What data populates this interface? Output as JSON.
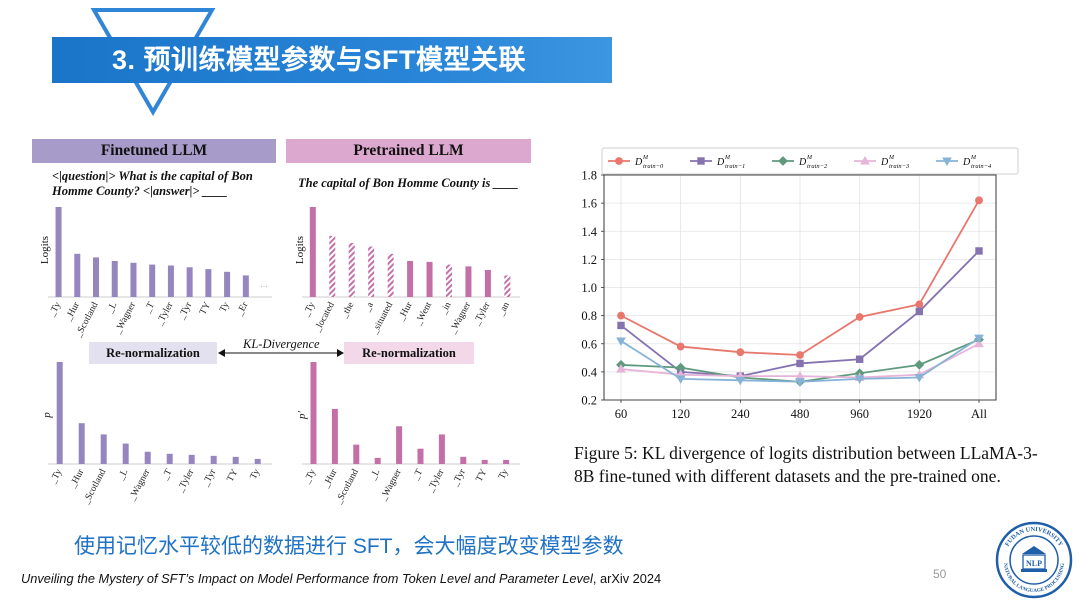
{
  "slide": {
    "title": "3. 预训练模型参数与SFT模型关联",
    "summary": "使用记忆水平较低的数据进行 SFT，会大幅度改变模型参数",
    "citation_title": "Unveiling the Mystery of SFT’s Impact on Model Performance from Token Level and Parameter Level",
    "citation_venue": ", arXiv 2024",
    "page_number": "50",
    "logo_text_top": "FUDAN UNIVERSITY",
    "logo_text_bottom": "NATURAL LANGUAGE PROCESSING",
    "logo_center": "NLP"
  },
  "figure": {
    "finetuned_header": "Finetuned LLM",
    "pretrained_header": "Pretrained LLM",
    "finetuned_prompt": "<|question|> What is the capital of Bon Homme County? <|answer|> ____",
    "pretrained_prompt": "The capital of Bon Homme County is ____",
    "renorm_label": "Re-normalization",
    "kl_label": "KL-Divergence",
    "ylabel_logits": "Logits",
    "ylabel_p": "p",
    "ylabel_pprime": "p'",
    "ft_logits": {
      "labels": [
        "_Ty",
        "_Hur",
        "_Scotland",
        "_L",
        "_Wagner",
        "_T",
        "_Tyler",
        "_Tyr",
        "TY",
        "Ty",
        "_Er"
      ],
      "values": [
        1.0,
        0.48,
        0.44,
        0.4,
        0.38,
        0.36,
        0.35,
        0.33,
        0.31,
        0.28,
        0.24
      ]
    },
    "pt_logits": {
      "labels": [
        "_Ty",
        "_located",
        "_the",
        "_a",
        "_situated",
        "_Hur",
        "_Went",
        "_in",
        "_Wagner",
        "_Tyler",
        "_an"
      ],
      "values": [
        1.0,
        0.68,
        0.6,
        0.56,
        0.48,
        0.4,
        0.39,
        0.36,
        0.34,
        0.3,
        0.24
      ],
      "hatched": [
        false,
        true,
        true,
        true,
        true,
        false,
        false,
        true,
        false,
        false,
        true
      ]
    },
    "ft_p": {
      "labels": [
        "_Ty",
        "_Hur",
        "_Scotland",
        "_L",
        "_Wagner",
        "_T",
        "_Tyler",
        "_Tyr",
        "TY",
        "Ty"
      ],
      "values": [
        1.0,
        0.4,
        0.29,
        0.2,
        0.12,
        0.1,
        0.09,
        0.08,
        0.07,
        0.05
      ]
    },
    "pt_p": {
      "labels": [
        "_Ty",
        "_Hur",
        "_Scotland",
        "_L",
        "_Wagner",
        "_T",
        "_Tyler",
        "_Tyr",
        "TY",
        "Ty"
      ],
      "values": [
        1.0,
        0.54,
        0.19,
        0.06,
        0.37,
        0.15,
        0.29,
        0.07,
        0.04,
        0.04
      ]
    },
    "colors": {
      "finetuned": "#9586bf",
      "pretrained": "#c470a8",
      "baseline": "#cccccc"
    }
  },
  "caption": "Figure 5: KL divergence of logits distribution between LLaMA-3-8B fine-tuned with different datasets and the pre-trained one.",
  "chart_data": {
    "type": "line",
    "title": "",
    "xlabel": "",
    "ylabel": "",
    "categories": [
      "60",
      "120",
      "240",
      "480",
      "960",
      "1920",
      "All"
    ],
    "ylim": [
      0.2,
      1.8
    ],
    "yticks": [
      "0.2",
      "0.4",
      "0.6",
      "0.8",
      "1.0",
      "1.2",
      "1.4",
      "1.6",
      "1.8"
    ],
    "grid": true,
    "legend_position": "top",
    "series": [
      {
        "name": "D^M_train−0",
        "label_main": "D",
        "label_sup": "M",
        "label_sub": "train−0",
        "color": "#e8776d",
        "marker": "circle",
        "values": [
          0.8,
          0.58,
          0.54,
          0.52,
          0.79,
          0.88,
          1.62
        ]
      },
      {
        "name": "D^M_train−1",
        "label_main": "D",
        "label_sup": "M",
        "label_sub": "train−1",
        "color": "#8573b0",
        "marker": "square",
        "values": [
          0.73,
          0.4,
          0.37,
          0.46,
          0.49,
          0.83,
          1.26
        ]
      },
      {
        "name": "D^M_train−2",
        "label_main": "D",
        "label_sup": "M",
        "label_sub": "train−2",
        "color": "#5f9a7e",
        "marker": "diamond",
        "values": [
          0.45,
          0.43,
          0.36,
          0.33,
          0.39,
          0.45,
          0.63
        ]
      },
      {
        "name": "D^M_train−3",
        "label_main": "D",
        "label_sup": "M",
        "label_sub": "train−3",
        "color": "#e6b4d8",
        "marker": "triangle-up",
        "values": [
          0.42,
          0.38,
          0.37,
          0.37,
          0.36,
          0.38,
          0.6
        ]
      },
      {
        "name": "D^M_train−4",
        "label_main": "D",
        "label_sup": "M",
        "label_sub": "train−4",
        "color": "#86b3d6",
        "marker": "triangle-down",
        "values": [
          0.62,
          0.35,
          0.34,
          0.33,
          0.35,
          0.36,
          0.64
        ]
      }
    ]
  }
}
